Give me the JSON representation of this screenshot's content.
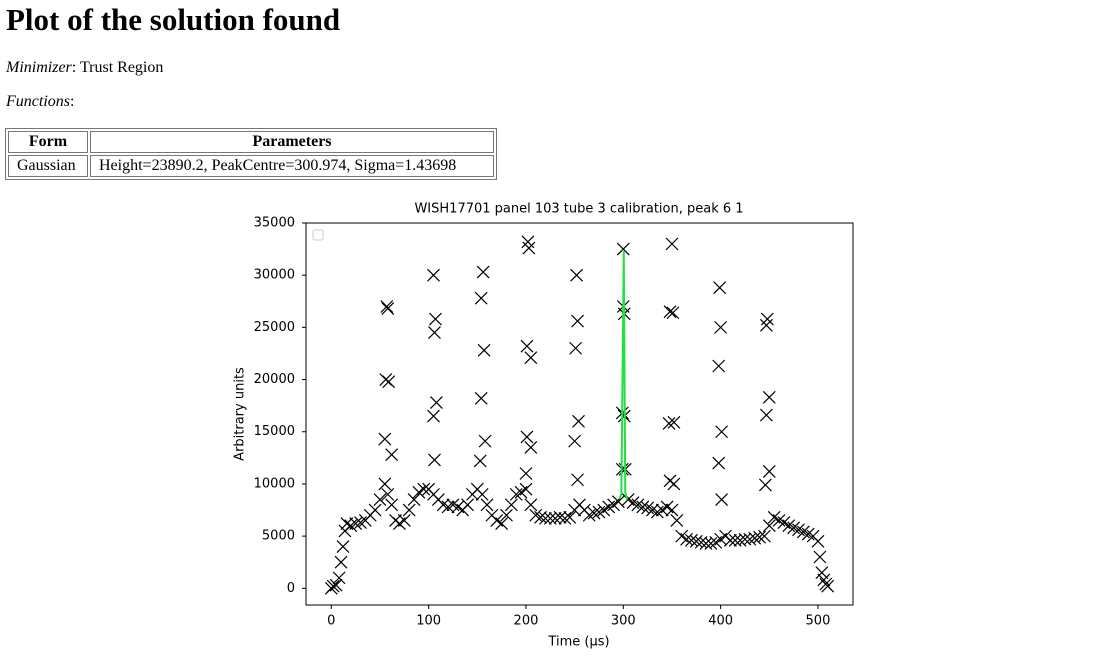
{
  "header": {
    "title": "Plot of the solution found"
  },
  "minimizer": {
    "label": "Minimizer",
    "text": ": Trust Region"
  },
  "functions": {
    "label": "Functions",
    "text": ":"
  },
  "table": {
    "header": [
      "Form",
      "Parameters"
    ],
    "rows": [
      [
        "Gaussian",
        "Height=23890.2, PeakCentre=300.974, Sigma=1.43698"
      ]
    ]
  },
  "chart_data": {
    "type": "scatter",
    "title": "WISH17701 panel 103 tube 3 calibration, peak 6 1",
    "x_label": "Time (μs)",
    "y_label": "Arbitrary units",
    "xlim": [
      -26,
      536
    ],
    "ylim": [
      -1600,
      35000
    ],
    "xticks": [
      0,
      100,
      200,
      300,
      400,
      500
    ],
    "yticks": [
      0,
      5000,
      10000,
      15000,
      20000,
      25000,
      30000,
      35000
    ],
    "legend": "upper left",
    "series": [
      {
        "color": "#000000",
        "style": "x",
        "x": [
          0,
          2,
          5,
          8,
          10,
          12,
          14,
          16,
          20,
          25,
          30,
          35,
          40,
          45,
          50,
          55,
          58,
          62,
          66,
          70,
          75,
          80,
          85,
          90,
          95,
          100,
          105,
          110,
          115,
          120,
          125,
          130,
          135,
          140,
          145,
          150,
          155,
          160,
          165,
          170,
          175,
          180,
          185,
          190,
          195,
          200,
          205,
          210,
          215,
          220,
          225,
          230,
          235,
          240,
          245,
          250,
          255,
          260,
          265,
          270,
          275,
          280,
          285,
          290,
          295,
          305,
          310,
          315,
          320,
          325,
          330,
          335,
          340,
          345,
          350,
          355,
          360,
          365,
          370,
          375,
          380,
          385,
          390,
          395,
          400,
          405,
          410,
          415,
          420,
          425,
          430,
          435,
          440,
          445,
          450,
          455,
          460,
          465,
          470,
          475,
          480,
          485,
          490,
          495,
          500,
          502,
          504,
          506,
          508,
          510,
          55,
          56,
          57,
          58,
          59,
          62,
          105,
          106,
          107,
          105,
          108,
          106,
          154,
          156,
          154,
          157,
          158,
          153,
          202,
          203,
          201,
          205,
          201,
          205,
          200,
          251,
          252,
          253,
          254,
          250,
          253,
          300,
          300,
          301,
          299,
          301,
          299,
          302,
          350,
          348,
          351,
          347,
          352,
          348,
          352,
          399,
          400,
          398,
          401,
          398,
          401,
          447,
          448,
          447,
          450,
          450,
          446
        ],
        "values": [
          0,
          200,
          300,
          1000,
          2500,
          4000,
          5500,
          6200,
          6000,
          6200,
          6300,
          6500,
          7000,
          7500,
          8500,
          10000,
          9000,
          8000,
          6500,
          6200,
          6500,
          7500,
          8500,
          9200,
          9500,
          9500,
          9000,
          8500,
          8000,
          7800,
          8000,
          7800,
          7500,
          8000,
          9000,
          9500,
          9000,
          8000,
          7000,
          6500,
          6200,
          7000,
          8000,
          9000,
          9200,
          9500,
          8000,
          7000,
          6800,
          6700,
          6700,
          6700,
          6800,
          6700,
          6800,
          7500,
          8000,
          7500,
          7000,
          7200,
          7300,
          7500,
          7800,
          8000,
          8300,
          8500,
          8200,
          8000,
          7800,
          7700,
          7500,
          7300,
          7500,
          7800,
          7500,
          6500,
          5000,
          4700,
          4600,
          4500,
          4400,
          4300,
          4300,
          4400,
          4700,
          5000,
          4600,
          4600,
          4600,
          4700,
          4700,
          4800,
          4900,
          5000,
          6000,
          6800,
          6500,
          6300,
          6000,
          5800,
          5600,
          5400,
          5200,
          5000,
          4500,
          3000,
          1500,
          800,
          400,
          200,
          14300,
          20000,
          27000,
          26800,
          19800,
          12800,
          30000,
          24500,
          25800,
          16500,
          17800,
          12300,
          27800,
          30300,
          18200,
          22800,
          14100,
          12200,
          33200,
          32600,
          23200,
          22100,
          14500,
          13500,
          11000,
          23000,
          30000,
          25600,
          16000,
          14100,
          10400,
          32500,
          27000,
          26300,
          16800,
          16500,
          11400,
          11400,
          33000,
          26500,
          26400,
          15800,
          15900,
          10300,
          10000,
          28800,
          25000,
          21300,
          15000,
          12000,
          8500,
          25200,
          25800,
          16600,
          18300,
          11200,
          9900
        ]
      },
      {
        "color": "#22e040",
        "style": "line",
        "x": [
          296,
          298,
          300.5,
          302,
          304
        ],
        "values": [
          8600,
          9000,
          32300,
          9200,
          8500
        ]
      }
    ]
  }
}
